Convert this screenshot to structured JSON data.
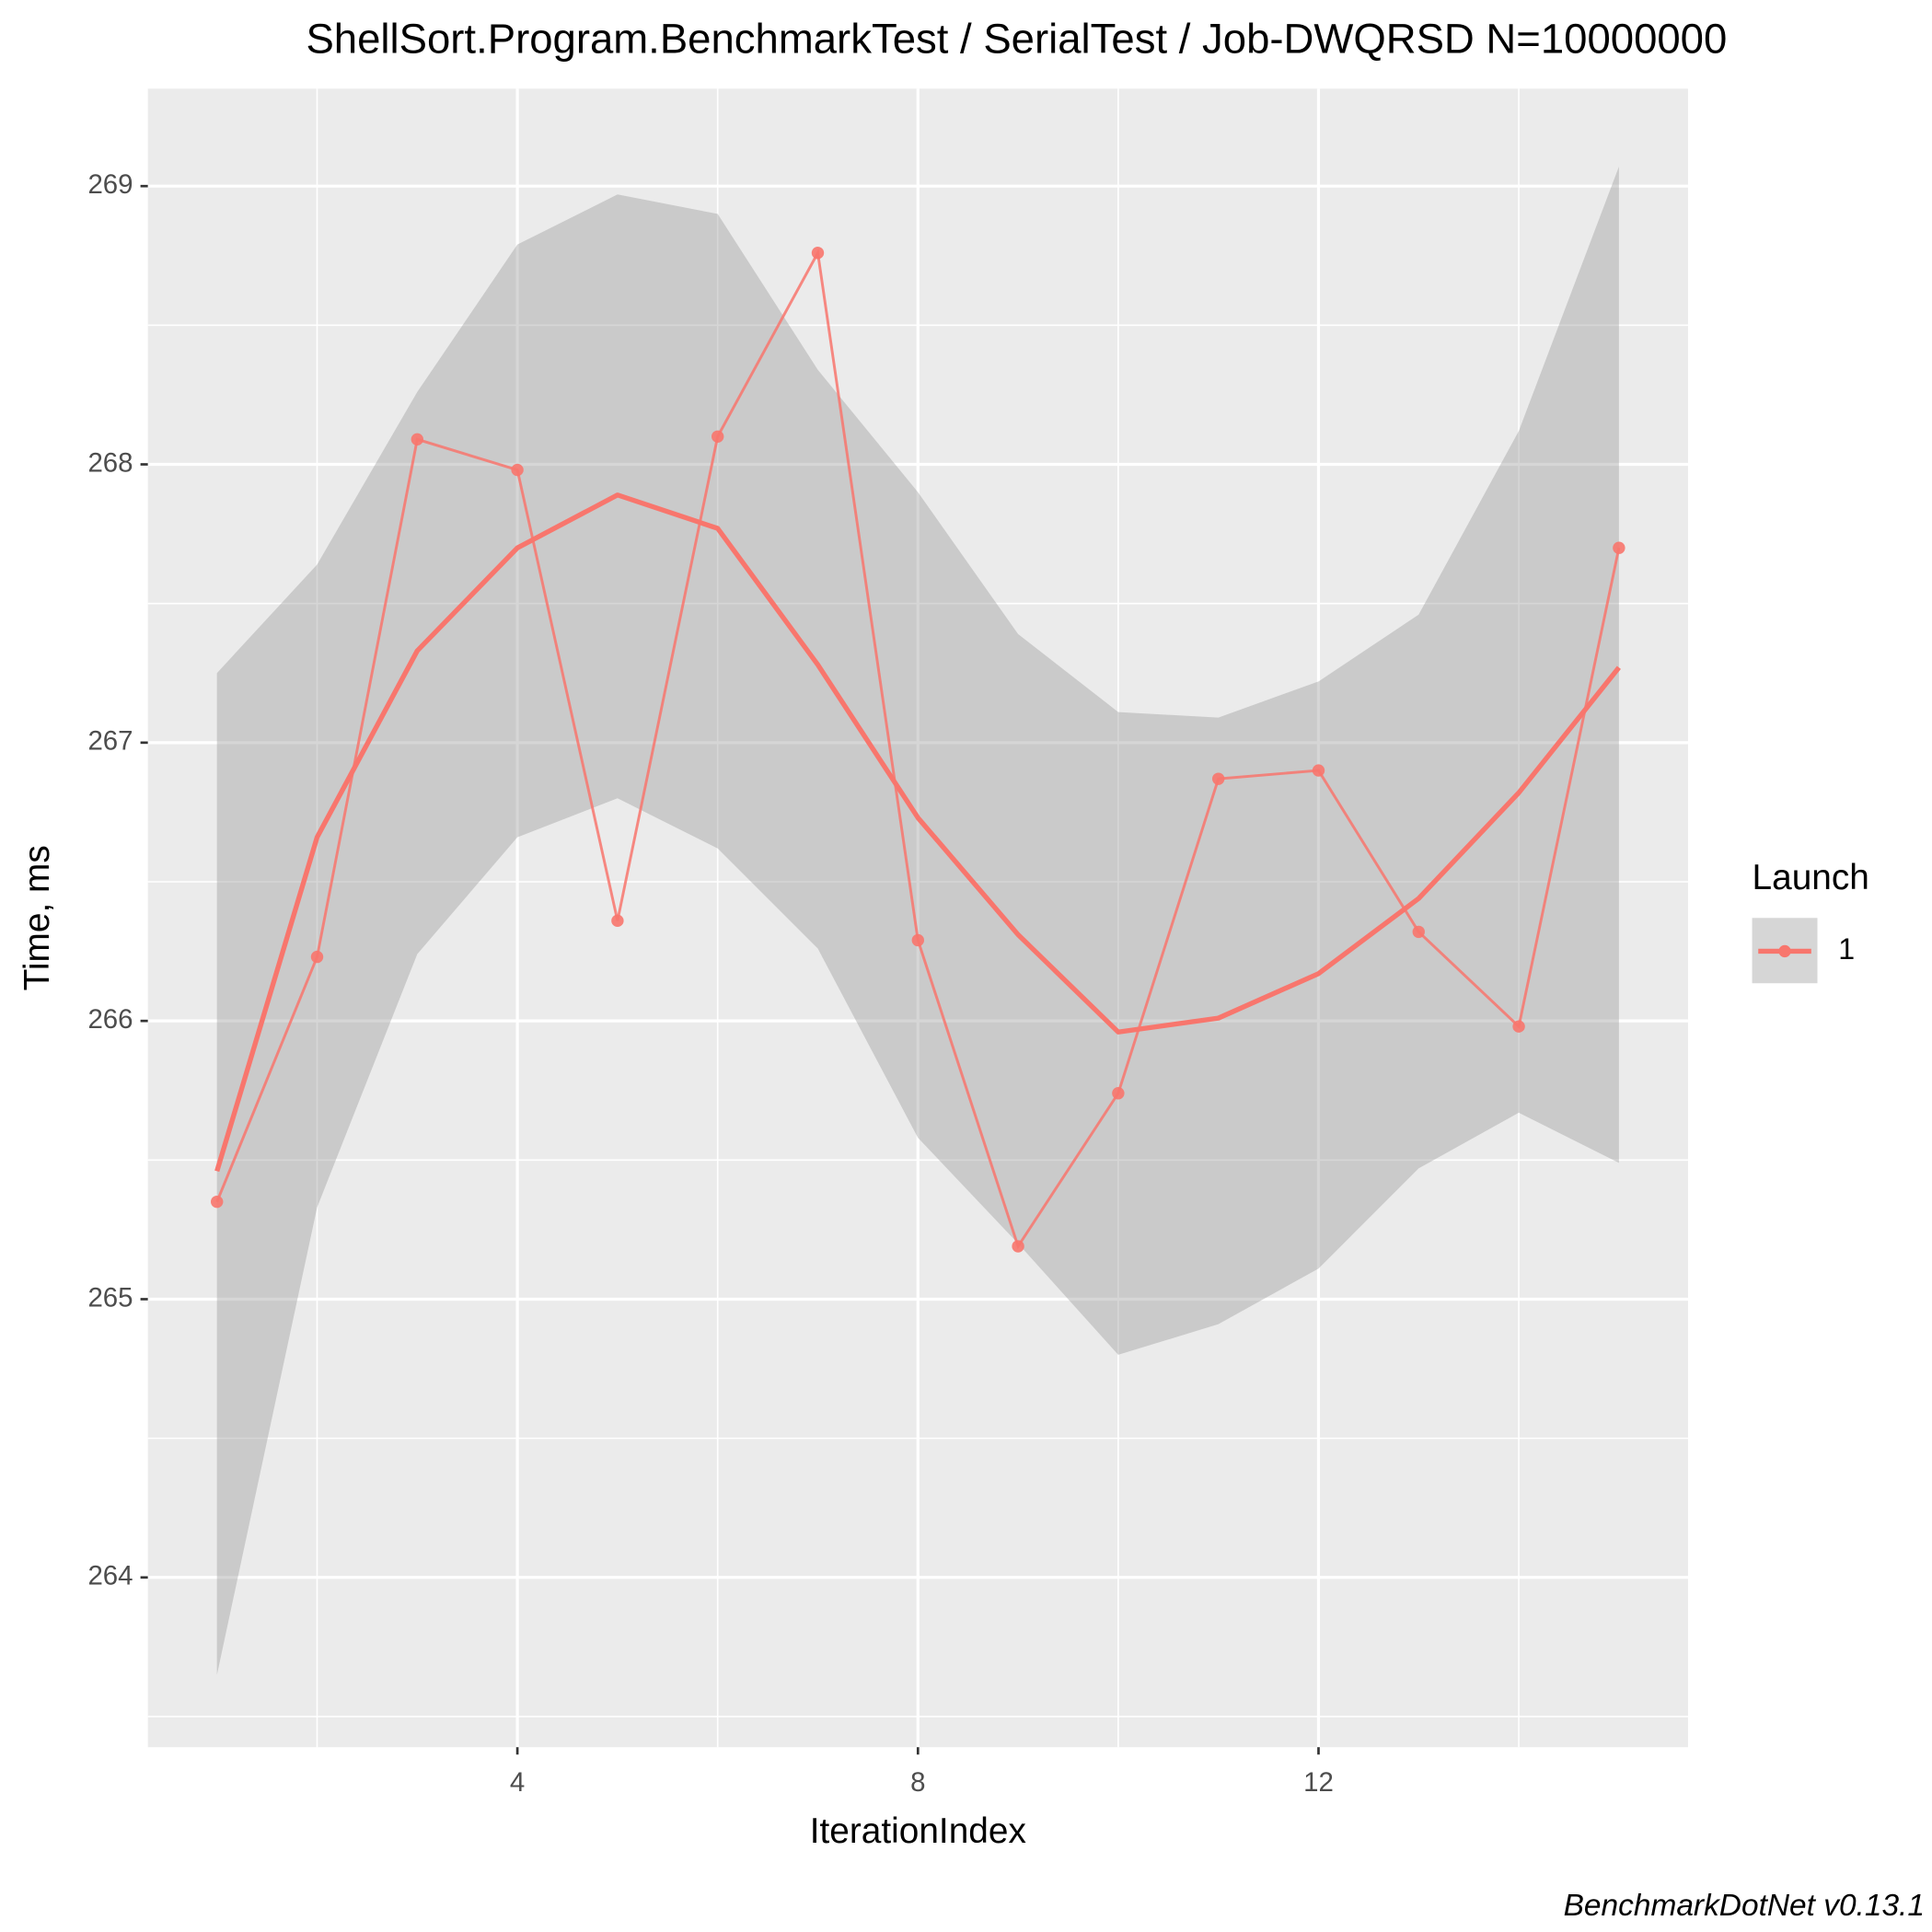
{
  "chart_data": {
    "type": "line",
    "title": "ShellSort.Program.BenchmarkTest / SerialTest / Job-DWQRSD N=10000000",
    "x_label": "IterationIndex",
    "y_label": "Time, ms",
    "caption": "BenchmarkDotNet v0.13.1",
    "legend_title": "Launch",
    "x": [
      1,
      2,
      3,
      4,
      5,
      6,
      7,
      8,
      9,
      10,
      11,
      12,
      13,
      14,
      15
    ],
    "series": [
      {
        "name": "1",
        "color": "#f8766d",
        "values": [
          265.35,
          266.23,
          268.09,
          267.98,
          266.36,
          268.1,
          268.76,
          266.29,
          265.19,
          265.74,
          266.87,
          266.9,
          266.32,
          265.98,
          267.7
        ]
      }
    ],
    "smooth": {
      "values": [
        265.46,
        266.66,
        267.33,
        267.7,
        267.89,
        267.77,
        267.28,
        266.73,
        266.31,
        265.96,
        266.01,
        266.17,
        266.44,
        266.82,
        267.27
      ],
      "lower": [
        263.65,
        265.33,
        266.24,
        266.66,
        266.8,
        266.62,
        266.26,
        265.58,
        265.2,
        264.8,
        264.91,
        265.11,
        265.47,
        265.67,
        265.49
      ],
      "upper": [
        267.25,
        267.64,
        268.26,
        268.79,
        268.97,
        268.9,
        268.34,
        267.9,
        267.39,
        267.11,
        267.09,
        267.22,
        267.46,
        268.12,
        269.07
      ],
      "band_color": "#999999"
    },
    "xlim": [
      0.31,
      15.69
    ],
    "ylim": [
      263.39,
      269.35
    ],
    "xticks": [
      4,
      8,
      12
    ],
    "yticks": [
      264,
      265,
      266,
      267,
      268,
      269
    ],
    "grid": true
  }
}
